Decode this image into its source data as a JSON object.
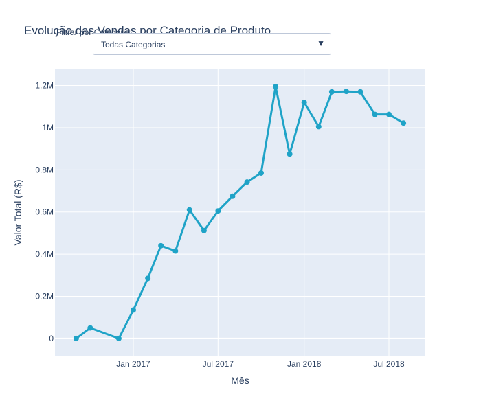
{
  "filter": {
    "label": "Filtrar por Categoria:",
    "selected": "Todas Categorias",
    "arrow_icon": "triangle-down-icon"
  },
  "chart_data": {
    "type": "line",
    "title": "Evolução das Vendas por Categoria de Produto",
    "xlabel": "Mês",
    "ylabel": "Valor Total (R$)",
    "x": [
      "2016-09",
      "2016-10",
      "2016-12",
      "2017-01",
      "2017-02",
      "2017-03",
      "2017-04",
      "2017-05",
      "2017-06",
      "2017-07",
      "2017-08",
      "2017-09",
      "2017-10",
      "2017-11",
      "2017-12",
      "2018-01",
      "2018-02",
      "2018-03",
      "2018-04",
      "2018-05",
      "2018-06",
      "2018-07",
      "2018-08"
    ],
    "series": [
      {
        "values": [
          0,
          50000,
          0,
          135000,
          285000,
          440000,
          415000,
          610000,
          512000,
          605000,
          675000,
          742000,
          785000,
          1195000,
          875000,
          1120000,
          1005000,
          1170000,
          1172000,
          1170000,
          1063000,
          1063000,
          1022000
        ]
      }
    ],
    "x_ticks": [
      "Jan 2017",
      "Jul 2017",
      "Jan 2018",
      "Jul 2018"
    ],
    "y_ticks": [
      "0",
      "0.2M",
      "0.4M",
      "0.6M",
      "0.8M",
      "1M",
      "1.2M"
    ],
    "ylim": [
      -85000,
      1280000
    ],
    "grid": true,
    "colors": {
      "line": "#1fa3c7",
      "plot_bg": "#e5ecf6",
      "grid": "#ffffff"
    }
  }
}
